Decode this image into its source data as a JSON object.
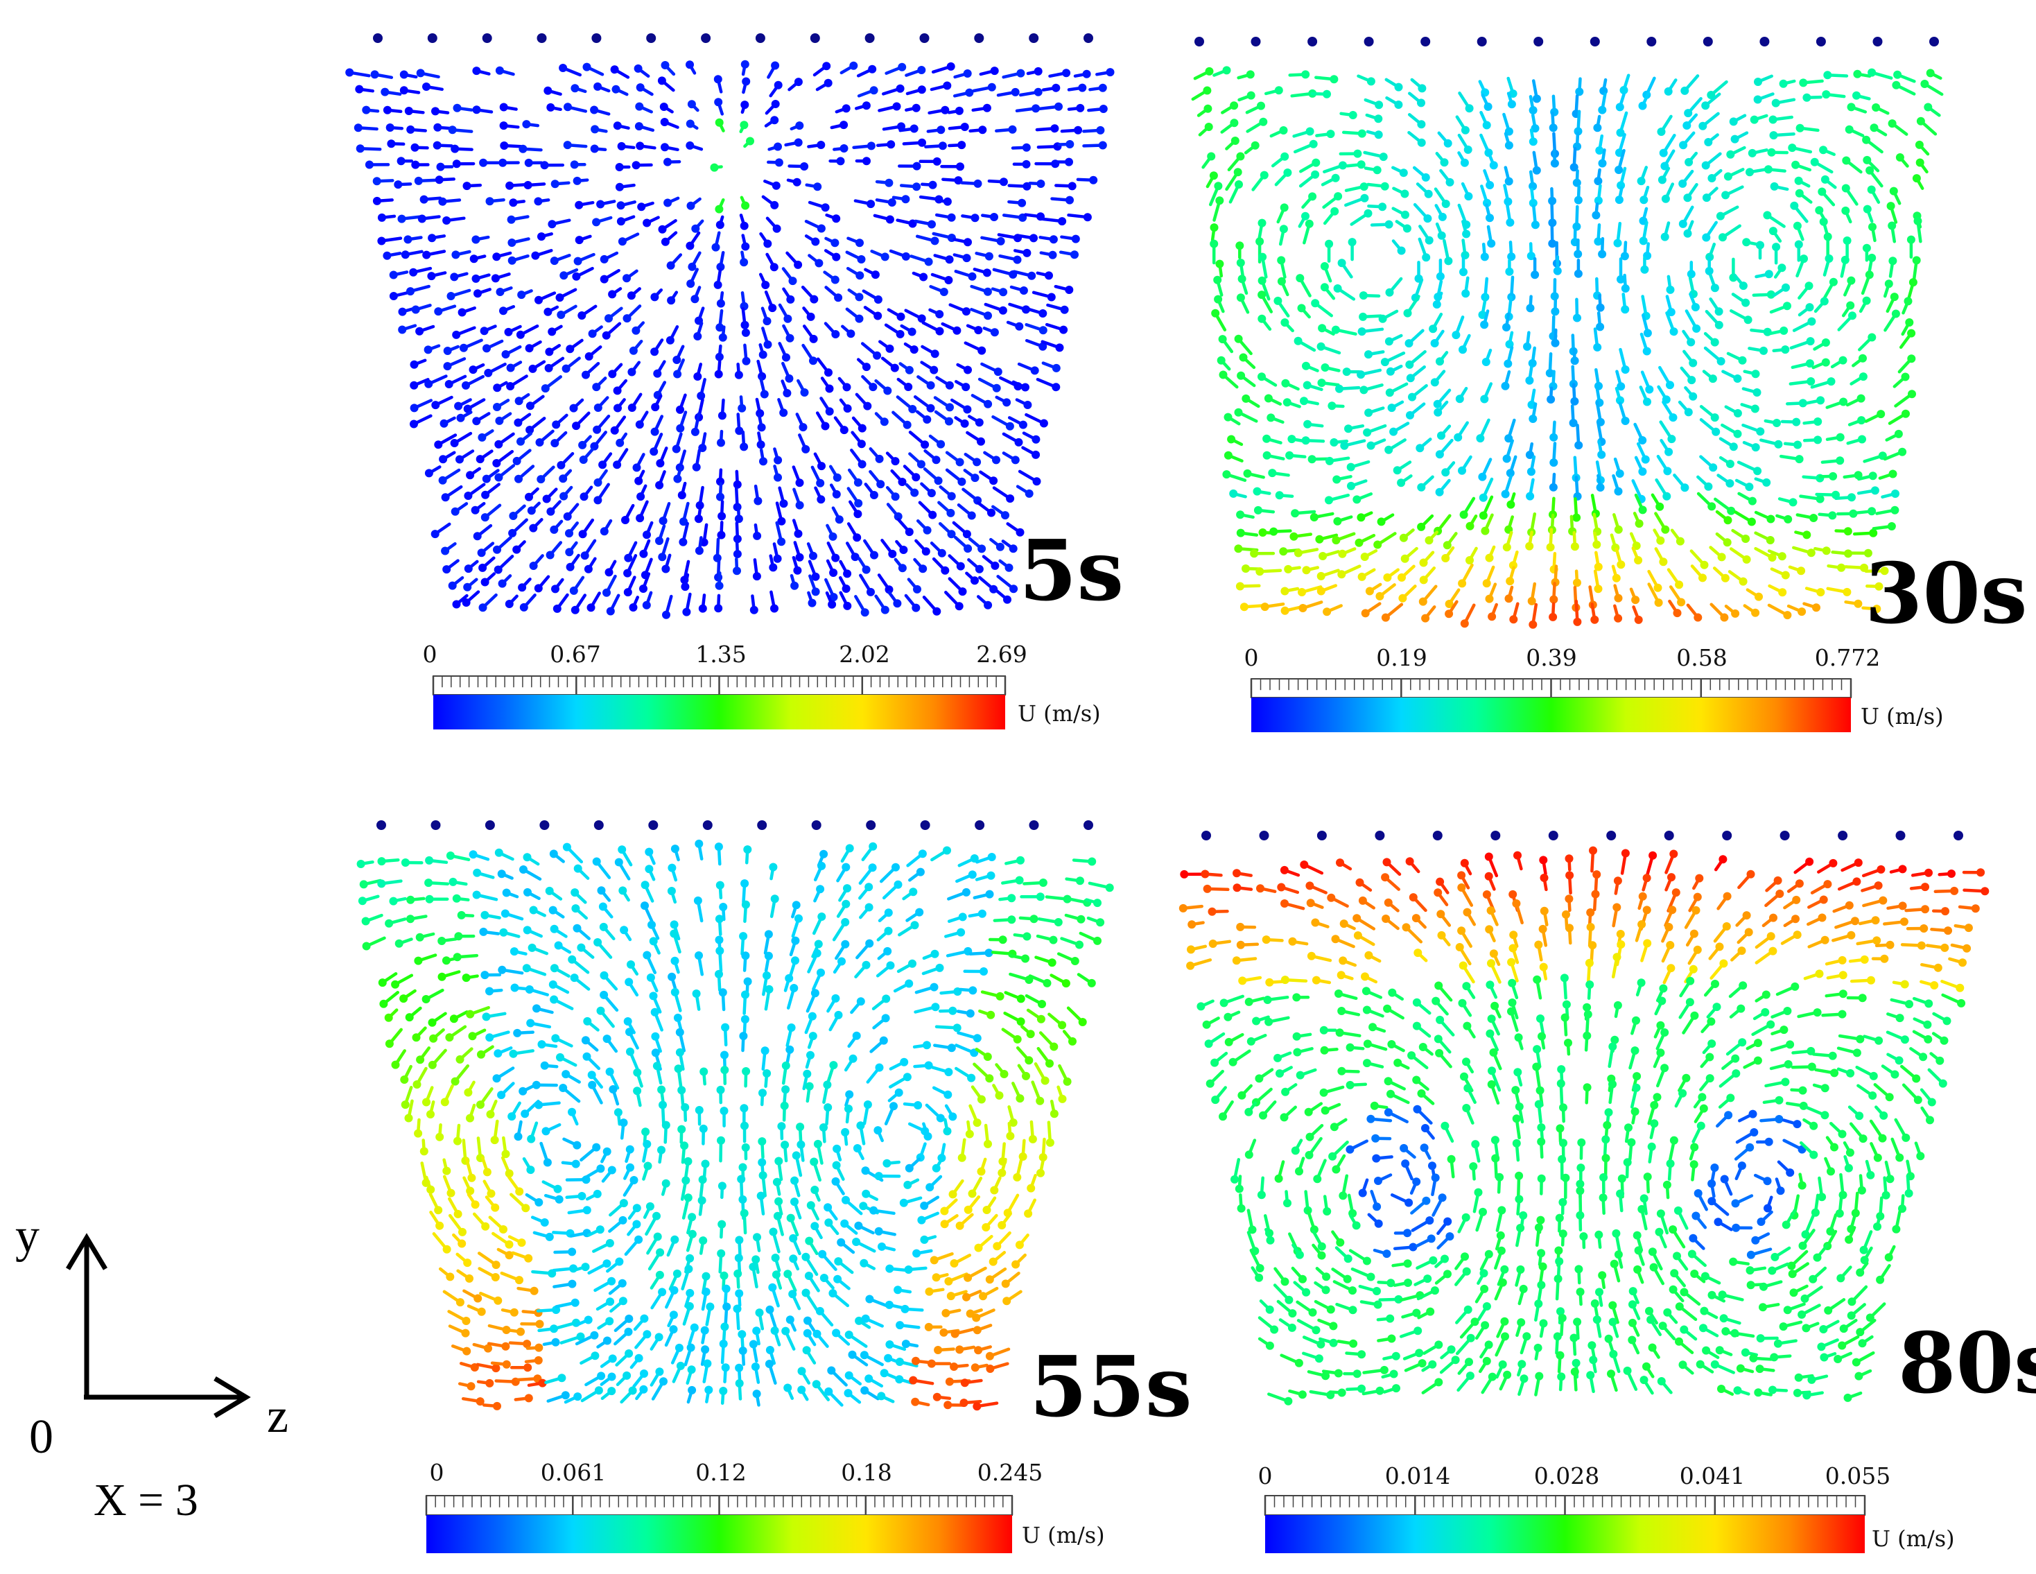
{
  "panels": [
    {
      "time_label": "5s",
      "colorbar": {
        "ticks": [
          "0",
          "0.67",
          "1.35",
          "2.02",
          "2.69"
        ],
        "unit": "U (m/s)",
        "min": 0,
        "max": 2.69
      },
      "flow_pattern": "radial fan of vectors from a central point near the top; nearly uniform low speed (blue) with a few high-speed (green to red) vectors at the center"
    },
    {
      "time_label": "30s",
      "colorbar": {
        "ticks": [
          "0",
          "0.19",
          "0.39",
          "0.58",
          "0.772"
        ],
        "unit": "U (m/s)",
        "min": 0,
        "max": 0.772
      },
      "flow_pattern": "two counter-rotating vortices in the upper half; highest speeds (orange-red) along the bottom, green along the side walls"
    },
    {
      "time_label": "55s",
      "colorbar": {
        "ticks": [
          "0",
          "0.061",
          "0.12",
          "0.18",
          "0.245"
        ],
        "unit": "U (m/s)",
        "min": 0,
        "max": 0.245
      },
      "flow_pattern": "two large vortices forming a heart shape; highest speeds (red-orange) along the lower side walls"
    },
    {
      "time_label": "80s",
      "colorbar": {
        "ticks": [
          "0",
          "0.014",
          "0.028",
          "0.041",
          "0.055"
        ],
        "unit": "U (m/s)",
        "min": 0,
        "max": 0.055
      },
      "flow_pattern": "two vortices low in the tank; highest speeds (red-orange) in the upper region, green downward flow in the center"
    }
  ],
  "axes_indicator": {
    "vertical_axis": "y",
    "horizontal_axis": "z",
    "origin": "0",
    "slice": "X = 3"
  },
  "colors": {
    "colormap": [
      "#0000ff",
      "#0066ff",
      "#00d8ff",
      "#00ff9c",
      "#22ff00",
      "#c8ff00",
      "#ffe600",
      "#ff8a00",
      "#ff0000"
    ],
    "arrow_stroke": "#0a0a6e",
    "text": "#000000"
  }
}
